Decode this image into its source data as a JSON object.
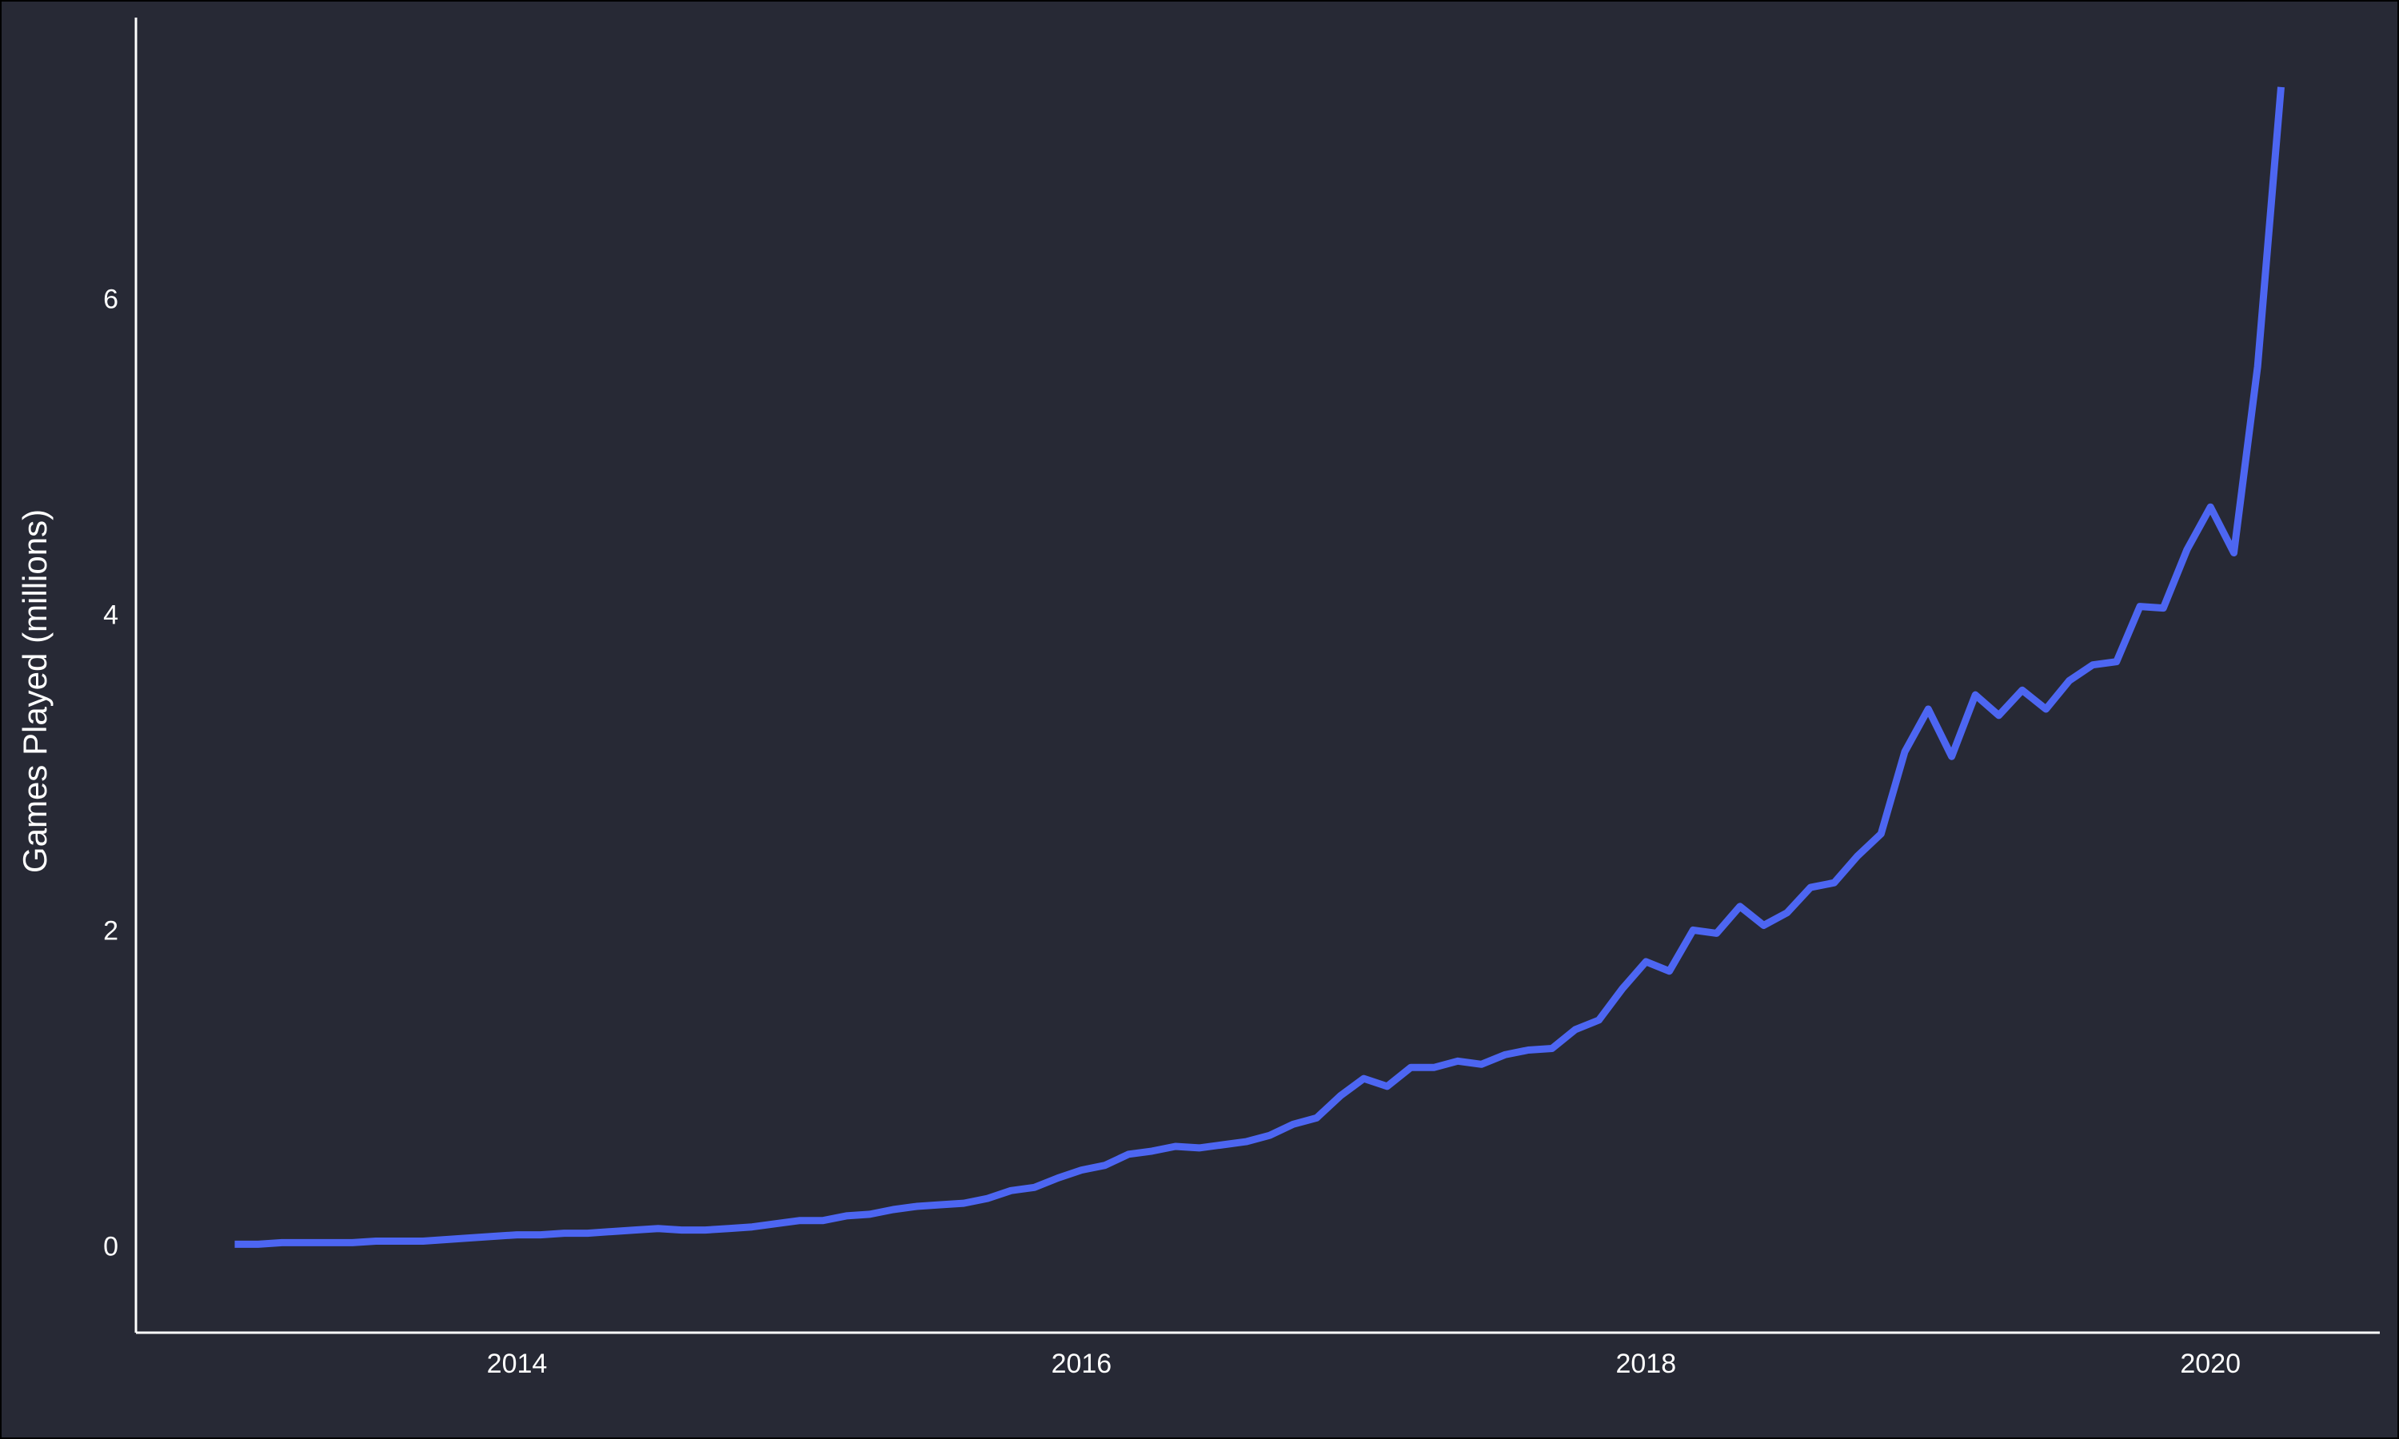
{
  "chart_data": {
    "type": "line",
    "title": "",
    "xlabel": "",
    "ylabel": "Games Played (millions)",
    "xlim": [
      2012.65,
      2020.6
    ],
    "ylim": [
      -0.55,
      7.78
    ],
    "x_ticks": [
      2014,
      2016,
      2018,
      2020
    ],
    "x_tick_labels": [
      "2014",
      "2016",
      "2018",
      "2020"
    ],
    "y_ticks": [
      0,
      2,
      4,
      6
    ],
    "y_tick_labels": [
      "0",
      "2",
      "4",
      "6"
    ],
    "grid": false,
    "legend": "none",
    "colors": {
      "background": "#272935",
      "line": "#4d66f2",
      "axis": "#ffffff",
      "text": "#ffffff"
    },
    "series": [
      {
        "x": [
          2013.0,
          2013.083,
          2013.167,
          2013.25,
          2013.333,
          2013.417,
          2013.5,
          2013.583,
          2013.667,
          2013.75,
          2013.833,
          2013.917,
          2014.0,
          2014.083,
          2014.167,
          2014.25,
          2014.333,
          2014.417,
          2014.5,
          2014.583,
          2014.667,
          2014.75,
          2014.833,
          2014.917,
          2015.0,
          2015.083,
          2015.167,
          2015.25,
          2015.333,
          2015.417,
          2015.5,
          2015.583,
          2015.667,
          2015.75,
          2015.833,
          2015.917,
          2016.0,
          2016.083,
          2016.167,
          2016.25,
          2016.333,
          2016.417,
          2016.5,
          2016.583,
          2016.667,
          2016.75,
          2016.833,
          2016.917,
          2017.0,
          2017.083,
          2017.167,
          2017.25,
          2017.333,
          2017.417,
          2017.5,
          2017.583,
          2017.667,
          2017.75,
          2017.833,
          2017.917,
          2018.0,
          2018.083,
          2018.167,
          2018.25,
          2018.333,
          2018.417,
          2018.5,
          2018.583,
          2018.667,
          2018.75,
          2018.833,
          2018.917,
          2019.0,
          2019.083,
          2019.167,
          2019.25,
          2019.333,
          2019.417,
          2019.5,
          2019.583,
          2019.667,
          2019.75,
          2019.833,
          2019.917,
          2020.0,
          2020.083,
          2020.167,
          2020.25
        ],
        "y": [
          0.01,
          0.01,
          0.02,
          0.02,
          0.02,
          0.02,
          0.03,
          0.03,
          0.03,
          0.04,
          0.05,
          0.06,
          0.07,
          0.07,
          0.08,
          0.08,
          0.09,
          0.1,
          0.11,
          0.1,
          0.1,
          0.11,
          0.12,
          0.14,
          0.16,
          0.16,
          0.19,
          0.2,
          0.23,
          0.25,
          0.26,
          0.27,
          0.3,
          0.35,
          0.37,
          0.43,
          0.48,
          0.51,
          0.58,
          0.6,
          0.63,
          0.62,
          0.64,
          0.66,
          0.7,
          0.77,
          0.81,
          0.95,
          1.06,
          1.01,
          1.13,
          1.13,
          1.17,
          1.15,
          1.21,
          1.24,
          1.25,
          1.37,
          1.43,
          1.63,
          1.8,
          1.74,
          2.0,
          1.98,
          2.15,
          2.03,
          2.11,
          2.27,
          2.3,
          2.47,
          2.61,
          3.13,
          3.4,
          3.1,
          3.49,
          3.36,
          3.52,
          3.4,
          3.58,
          3.68,
          3.7,
          4.05,
          4.04,
          4.41,
          4.68,
          4.39,
          5.57,
          7.34
        ]
      }
    ]
  }
}
